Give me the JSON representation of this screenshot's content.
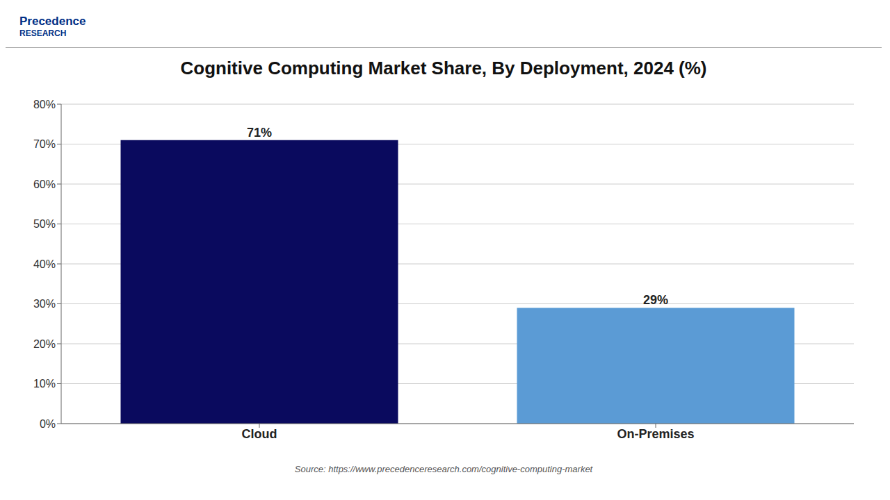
{
  "chart_data": {
    "type": "bar",
    "title": "Cognitive Computing Market Share, By Deployment, 2024 (%)",
    "categories": [
      "Cloud",
      "On-Premises"
    ],
    "values": [
      71,
      29
    ],
    "value_labels": [
      "71%",
      "29%"
    ],
    "colors": [
      "#0a0a5e",
      "#5b9bd5"
    ],
    "ylim": [
      0,
      80
    ],
    "yticks": [
      {
        "value": 0,
        "label": "0%"
      },
      {
        "value": 10,
        "label": "10%"
      },
      {
        "value": 20,
        "label": "20%"
      },
      {
        "value": 30,
        "label": "30%"
      },
      {
        "value": 40,
        "label": "40%"
      },
      {
        "value": 50,
        "label": "50%"
      },
      {
        "value": 60,
        "label": "60%"
      },
      {
        "value": 70,
        "label": "70%"
      },
      {
        "value": 80,
        "label": "80%"
      }
    ],
    "grid": true,
    "data_labels": true,
    "annotations": [
      "Precedence",
      "RESEARCH",
      "Source: https://www.precedenceresearch.com/cognitive-computing-market"
    ]
  }
}
